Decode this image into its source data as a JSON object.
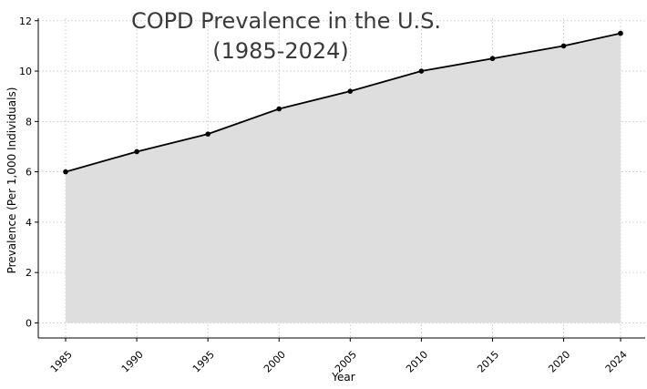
{
  "chart_data": {
    "type": "area",
    "title_line1": "COPD Prevalence in the U.S.",
    "title_line2": "(1985-2024)",
    "xlabel": "Year",
    "ylabel": "Prevalence (Per 1,000 Individuals)",
    "x": [
      1985,
      1990,
      1995,
      2000,
      2005,
      2010,
      2015,
      2020,
      2024
    ],
    "x_tick_labels": [
      "1985",
      "1990",
      "1995",
      "2000",
      "2005",
      "2010",
      "2015",
      "2020",
      "2024"
    ],
    "series": [
      {
        "name": "Prevalence",
        "values": [
          6.0,
          6.8,
          7.5,
          8.5,
          9.2,
          10.0,
          10.5,
          11.0,
          11.5
        ]
      }
    ],
    "y_ticks": [
      0,
      2,
      4,
      6,
      8,
      10,
      12
    ],
    "ylim": [
      -0.6,
      12.1
    ],
    "grid": true,
    "line_color": "#000000",
    "fill_color": "#dedede",
    "grid_color": "#cccccc"
  }
}
